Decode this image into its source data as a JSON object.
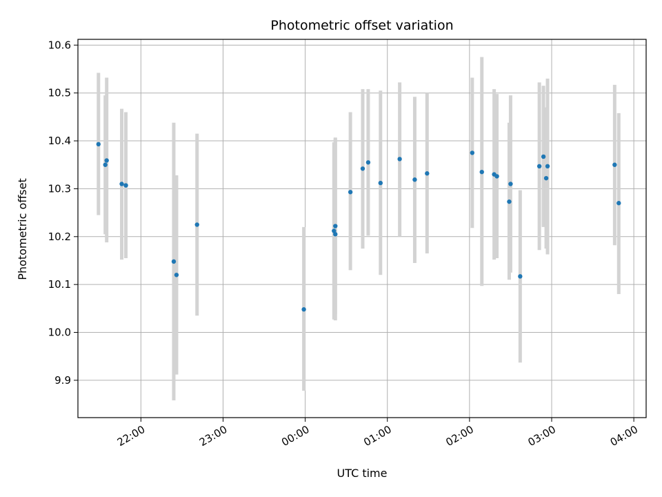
{
  "chart_data": {
    "type": "scatter",
    "title": "Photometric offset variation",
    "xlabel": "UTC time",
    "ylabel": "Photometric offset",
    "x_ticks": [
      "22:00",
      "23:00",
      "00:00",
      "01:00",
      "02:00",
      "03:00",
      "04:00"
    ],
    "x_tick_hours": [
      22,
      23,
      24,
      25,
      26,
      27,
      28
    ],
    "xlim": [
      "21:14",
      "04:09"
    ],
    "y_ticks": [
      "9.9",
      "10.0",
      "10.1",
      "10.2",
      "10.3",
      "10.4",
      "10.5",
      "10.6"
    ],
    "ylim": [
      9.822,
      10.612
    ],
    "grid": true,
    "colors": {
      "points": "#1f77b4",
      "errorbars": "#d3d3d3",
      "grid": "#b0b0b0"
    },
    "points": [
      {
        "x": "21:29",
        "y": 10.393,
        "ylo": 10.245,
        "yhi": 10.542
      },
      {
        "x": "21:34",
        "y": 10.35,
        "ylo": 10.205,
        "yhi": 10.495
      },
      {
        "x": "21:35",
        "y": 10.359,
        "ylo": 10.188,
        "yhi": 10.532
      },
      {
        "x": "21:46",
        "y": 10.31,
        "ylo": 10.152,
        "yhi": 10.467
      },
      {
        "x": "21:49",
        "y": 10.307,
        "ylo": 10.155,
        "yhi": 10.46
      },
      {
        "x": "22:24",
        "y": 10.148,
        "ylo": 9.858,
        "yhi": 10.438
      },
      {
        "x": "22:26",
        "y": 10.12,
        "ylo": 9.912,
        "yhi": 10.328
      },
      {
        "x": "22:41",
        "y": 10.225,
        "ylo": 10.035,
        "yhi": 10.415
      },
      {
        "x": "23:59",
        "y": 10.048,
        "ylo": 9.878,
        "yhi": 10.22
      },
      {
        "x": "00:21",
        "y": 10.212,
        "ylo": 10.027,
        "yhi": 10.397
      },
      {
        "x": "00:22",
        "y": 10.205,
        "ylo": 10.025,
        "yhi": 10.405
      },
      {
        "x": "00:22",
        "y": 10.222,
        "ylo": 10.038,
        "yhi": 10.407
      },
      {
        "x": "00:33",
        "y": 10.293,
        "ylo": 10.13,
        "yhi": 10.46
      },
      {
        "x": "00:42",
        "y": 10.342,
        "ylo": 10.175,
        "yhi": 10.508
      },
      {
        "x": "00:46",
        "y": 10.355,
        "ylo": 10.202,
        "yhi": 10.508
      },
      {
        "x": "00:55",
        "y": 10.312,
        "ylo": 10.12,
        "yhi": 10.505
      },
      {
        "x": "01:09",
        "y": 10.362,
        "ylo": 10.2,
        "yhi": 10.522
      },
      {
        "x": "01:20",
        "y": 10.319,
        "ylo": 10.145,
        "yhi": 10.492
      },
      {
        "x": "01:29",
        "y": 10.332,
        "ylo": 10.165,
        "yhi": 10.5
      },
      {
        "x": "02:02",
        "y": 10.375,
        "ylo": 10.218,
        "yhi": 10.532
      },
      {
        "x": "02:09",
        "y": 10.335,
        "ylo": 10.097,
        "yhi": 10.575
      },
      {
        "x": "02:18",
        "y": 10.33,
        "ylo": 10.152,
        "yhi": 10.508
      },
      {
        "x": "02:20",
        "y": 10.326,
        "ylo": 10.155,
        "yhi": 10.498
      },
      {
        "x": "02:29",
        "y": 10.273,
        "ylo": 10.11,
        "yhi": 10.438
      },
      {
        "x": "02:30",
        "y": 10.31,
        "ylo": 10.125,
        "yhi": 10.495
      },
      {
        "x": "02:37",
        "y": 10.117,
        "ylo": 9.937,
        "yhi": 10.297
      },
      {
        "x": "02:51",
        "y": 10.347,
        "ylo": 10.172,
        "yhi": 10.522
      },
      {
        "x": "02:54",
        "y": 10.367,
        "ylo": 10.22,
        "yhi": 10.515
      },
      {
        "x": "02:56",
        "y": 10.322,
        "ylo": 10.175,
        "yhi": 10.47
      },
      {
        "x": "02:57",
        "y": 10.347,
        "ylo": 10.163,
        "yhi": 10.53
      },
      {
        "x": "03:46",
        "y": 10.35,
        "ylo": 10.182,
        "yhi": 10.517
      },
      {
        "x": "03:49",
        "y": 10.27,
        "ylo": 10.08,
        "yhi": 10.458
      }
    ]
  }
}
